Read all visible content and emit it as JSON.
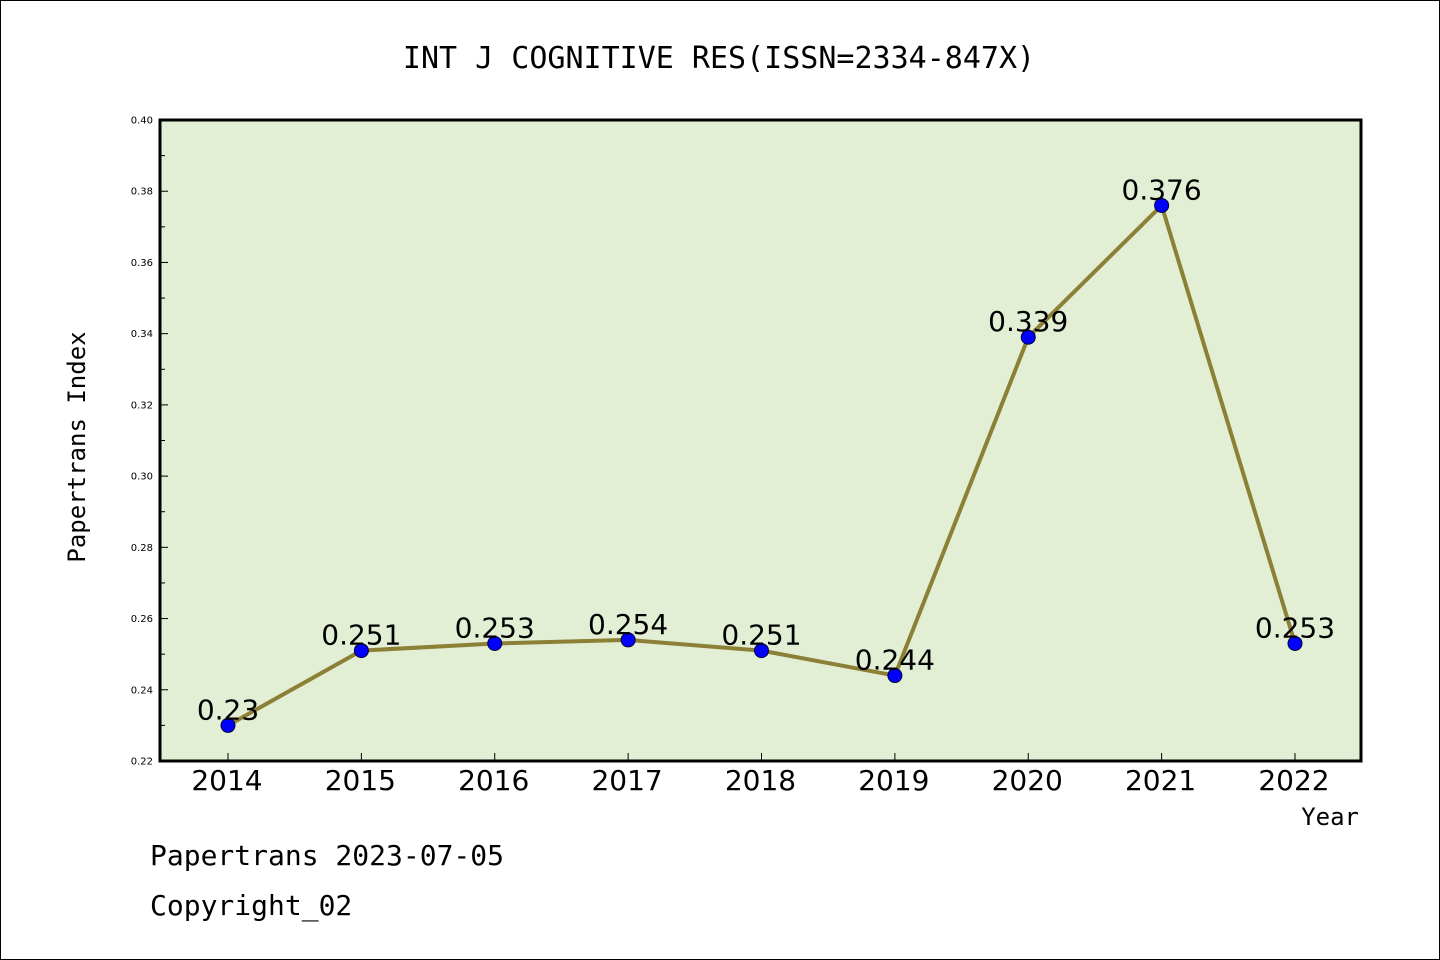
{
  "chart_data": {
    "type": "line",
    "title": "INT J COGNITIVE RES(ISSN=2334-847X)",
    "xlabel": "Year",
    "ylabel": "Papertrans Index",
    "x": [
      "2014",
      "2015",
      "2016",
      "2017",
      "2018",
      "2019",
      "2020",
      "2021",
      "2022"
    ],
    "series": [
      {
        "values": [
          0.23,
          0.251,
          0.253,
          0.254,
          0.251,
          0.244,
          0.339,
          0.376,
          0.253
        ],
        "labels": [
          "0.23",
          "0.251",
          "0.253",
          "0.254",
          "0.251",
          "0.244",
          "0.339",
          "0.376",
          "0.253"
        ],
        "line_color": "#8b8035",
        "marker_color": "#0000ff"
      }
    ],
    "ylim": [
      0.22,
      0.4
    ],
    "yticks": [
      "0.22",
      "0.24",
      "0.26",
      "0.28",
      "0.30",
      "0.32",
      "0.34",
      "0.36",
      "0.38",
      "0.40"
    ],
    "plot_background": "#e2efd5",
    "grid": false,
    "legend": "none"
  },
  "footer": {
    "date_line": "Papertrans 2023-07-05",
    "copyright_line": "Copyright_02"
  }
}
